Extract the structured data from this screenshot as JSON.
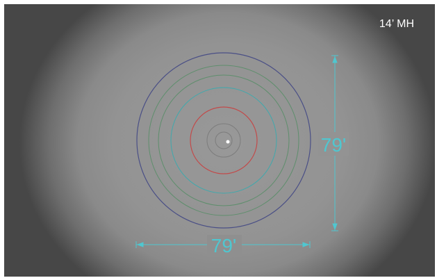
{
  "mounting_height_label": "14’ MH",
  "dimensions": {
    "vertical_label": "79'",
    "horizontal_label": "79'"
  },
  "contours": [
    {
      "color": "#4a4f86"
    },
    {
      "color": "#5e8e6c"
    },
    {
      "color": "#3fa9ad"
    },
    {
      "color": "#c24a4a"
    },
    {
      "color": "#7c7c7c"
    }
  ],
  "colors": {
    "dimension": "#4fc7d0",
    "center_point": "#ffffff"
  }
}
